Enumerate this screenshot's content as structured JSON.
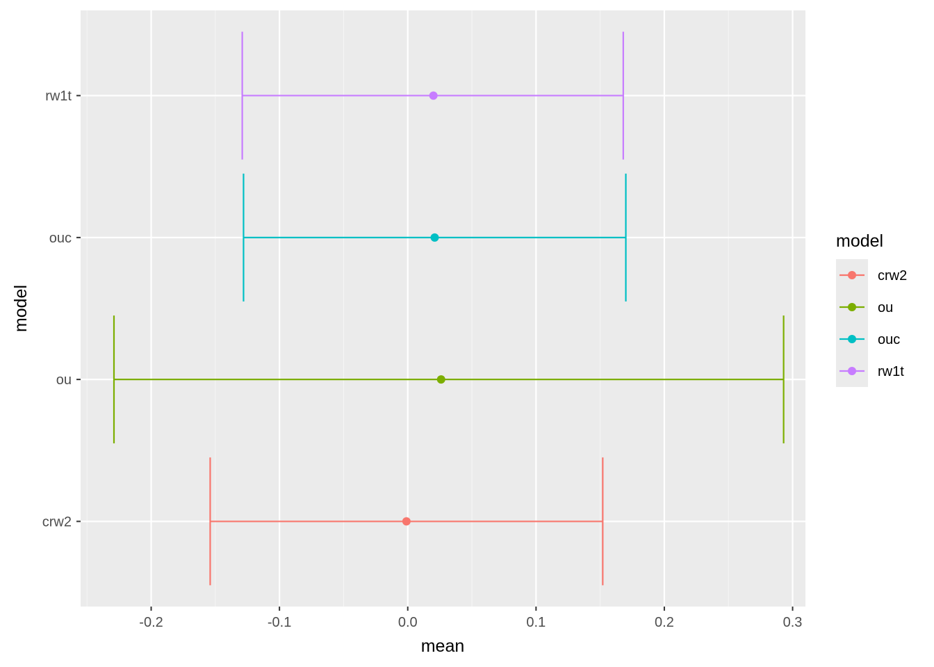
{
  "chart_data": {
    "type": "errorbar",
    "xlabel": "mean",
    "ylabel": "model",
    "xlim": [
      -0.255,
      0.31
    ],
    "x_ticks": [
      "-0.2",
      "-0.1",
      "0.0",
      "0.1",
      "0.2",
      "0.3"
    ],
    "x_tick_values": [
      -0.2,
      -0.1,
      0.0,
      0.1,
      0.2,
      0.3
    ],
    "categories": [
      "crw2",
      "ou",
      "ouc",
      "rw1t"
    ],
    "grid": true,
    "legend": {
      "title": "model",
      "placement": "right",
      "entries": [
        "crw2",
        "ou",
        "ouc",
        "rw1t"
      ]
    },
    "series": [
      {
        "category": "crw2",
        "mean": -0.001,
        "lower": -0.154,
        "upper": 0.152,
        "color": "#F8766D"
      },
      {
        "category": "ou",
        "mean": 0.026,
        "lower": -0.229,
        "upper": 0.293,
        "color": "#7CAE00"
      },
      {
        "category": "ouc",
        "mean": 0.021,
        "lower": -0.128,
        "upper": 0.17,
        "color": "#00BFC4"
      },
      {
        "category": "rw1t",
        "mean": 0.02,
        "lower": -0.129,
        "upper": 0.168,
        "color": "#C77CFF"
      }
    ],
    "colors": {
      "panel_background": "#EBEBEB",
      "grid_major": "#FFFFFF",
      "grid_minor": "#F5F5F5",
      "tick_mark": "#333333",
      "legend_key_background": "#EBEBEB"
    }
  }
}
